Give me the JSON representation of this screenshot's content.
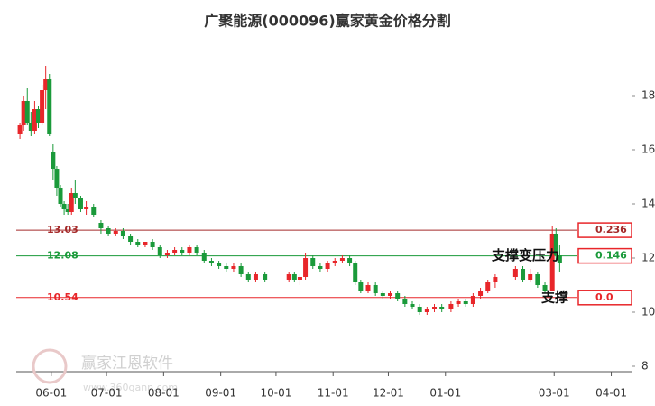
{
  "chart_data": {
    "type": "candlestick",
    "title": "广聚能源(000096)赢家黄金价格分割",
    "x": [
      "05-15",
      "05-17",
      "05-19",
      "05-21",
      "05-23",
      "05-25",
      "05-27",
      "05-29",
      "05-31",
      "06-02",
      "06-04",
      "06-06",
      "06-08",
      "06-10",
      "06-12",
      "06-14",
      "06-17",
      "06-20",
      "06-24",
      "06-28",
      "07-02",
      "07-06",
      "07-10",
      "07-14",
      "07-18",
      "07-22",
      "07-26",
      "07-30",
      "08-03",
      "08-07",
      "08-11",
      "08-15",
      "08-19",
      "08-23",
      "08-27",
      "08-31",
      "09-04",
      "09-08",
      "09-12",
      "09-16",
      "09-20",
      "09-25",
      "10-08",
      "10-11",
      "10-14",
      "10-17",
      "10-21",
      "10-25",
      "10-29",
      "11-02",
      "11-06",
      "11-10",
      "11-13",
      "11-16",
      "11-20",
      "11-24",
      "11-28",
      "12-02",
      "12-06",
      "12-10",
      "12-14",
      "12-18",
      "12-22",
      "12-26",
      "12-30",
      "01-04",
      "01-08",
      "01-12",
      "01-16",
      "01-20",
      "01-24",
      "01-28",
      "02-08",
      "02-12",
      "02-16",
      "02-20",
      "02-24",
      "02-28",
      "03-02",
      "03-04"
    ],
    "open": [
      16.6,
      16.9,
      17.8,
      17.0,
      16.7,
      17.5,
      17.0,
      18.2,
      18.6,
      15.9,
      15.3,
      14.6,
      14.0,
      13.8,
      13.7,
      14.4,
      14.2,
      13.8,
      13.9,
      13.3,
      13.1,
      12.9,
      13.0,
      12.8,
      12.6,
      12.5,
      12.6,
      12.4,
      12.1,
      12.2,
      12.3,
      12.2,
      12.4,
      12.2,
      11.9,
      11.8,
      11.7,
      11.6,
      11.7,
      11.4,
      11.2,
      11.4,
      11.2,
      11.4,
      11.2,
      11.3,
      12.0,
      11.7,
      11.6,
      11.8,
      11.9,
      12.0,
      11.8,
      11.1,
      10.8,
      11.0,
      10.7,
      10.6,
      10.7,
      10.5,
      10.3,
      10.2,
      10.0,
      10.1,
      10.2,
      10.1,
      10.3,
      10.4,
      10.3,
      10.6,
      10.8,
      11.1,
      11.3,
      11.6,
      11.2,
      11.4,
      11.0,
      10.8,
      12.9,
      12.1
    ],
    "high": [
      17.0,
      18.0,
      18.3,
      17.4,
      17.8,
      17.6,
      18.4,
      19.1,
      18.8,
      16.2,
      15.4,
      14.7,
      14.1,
      14.0,
      14.6,
      14.9,
      14.3,
      14.1,
      14.0,
      13.4,
      13.2,
      13.1,
      13.1,
      12.9,
      12.7,
      12.6,
      12.7,
      12.5,
      12.3,
      12.4,
      12.4,
      12.5,
      12.5,
      12.3,
      12.0,
      11.9,
      11.8,
      11.8,
      11.8,
      11.5,
      11.5,
      11.5,
      11.5,
      11.5,
      11.4,
      12.2,
      12.1,
      11.8,
      11.9,
      12.0,
      12.1,
      12.1,
      11.9,
      11.2,
      11.1,
      11.1,
      10.8,
      10.8,
      10.8,
      10.6,
      10.4,
      10.3,
      10.2,
      10.3,
      10.3,
      10.4,
      10.5,
      10.5,
      10.7,
      10.9,
      11.2,
      11.4,
      11.7,
      11.7,
      11.6,
      11.5,
      11.1,
      13.2,
      13.1,
      12.5
    ],
    "low": [
      16.4,
      16.7,
      16.9,
      16.5,
      16.6,
      16.8,
      16.9,
      17.5,
      16.5,
      14.9,
      14.3,
      13.9,
      13.6,
      13.6,
      13.6,
      14.0,
      13.7,
      13.6,
      13.5,
      12.9,
      12.8,
      12.8,
      12.7,
      12.5,
      12.4,
      12.4,
      12.3,
      12.0,
      12.0,
      12.1,
      12.1,
      12.1,
      12.1,
      11.8,
      11.7,
      11.6,
      11.5,
      11.5,
      11.3,
      11.1,
      11.1,
      11.1,
      11.1,
      11.1,
      11.0,
      11.2,
      11.6,
      11.5,
      11.5,
      11.7,
      11.8,
      11.7,
      11.0,
      10.7,
      10.7,
      10.6,
      10.5,
      10.5,
      10.4,
      10.2,
      10.1,
      9.9,
      9.9,
      10.0,
      10.0,
      10.0,
      10.2,
      10.2,
      10.2,
      10.5,
      10.7,
      10.9,
      11.2,
      11.1,
      11.1,
      10.9,
      10.7,
      10.8,
      11.9,
      11.5
    ],
    "close": [
      16.9,
      17.8,
      17.0,
      16.7,
      17.5,
      17.0,
      18.2,
      18.6,
      16.6,
      15.3,
      14.6,
      14.0,
      13.8,
      13.7,
      14.4,
      14.2,
      13.8,
      13.9,
      13.6,
      13.1,
      12.9,
      13.0,
      12.8,
      12.6,
      12.5,
      12.6,
      12.4,
      12.1,
      12.2,
      12.3,
      12.2,
      12.4,
      12.2,
      11.9,
      11.8,
      11.7,
      11.6,
      11.7,
      11.4,
      11.2,
      11.4,
      11.2,
      11.4,
      11.2,
      11.3,
      12.0,
      11.7,
      11.6,
      11.8,
      11.9,
      12.0,
      11.8,
      11.1,
      10.8,
      11.0,
      10.7,
      10.6,
      10.7,
      10.5,
      10.3,
      10.2,
      10.0,
      10.1,
      10.2,
      10.1,
      10.3,
      10.4,
      10.3,
      10.6,
      10.8,
      11.1,
      11.3,
      11.6,
      11.2,
      11.4,
      11.0,
      10.8,
      12.9,
      12.1,
      11.8
    ],
    "up_color": "#e8262a",
    "down_color": "#1a9a3a",
    "xlim": [
      "05-13",
      "04-12"
    ],
    "xticks": [
      "06-01",
      "07-01",
      "08-01",
      "09-01",
      "10-01",
      "11-01",
      "12-01",
      "01-01",
      "03-01",
      "04-01"
    ],
    "ylim": [
      7.8,
      20.2
    ],
    "yticks": [
      8,
      10,
      12,
      14,
      16,
      18
    ],
    "levels": [
      {
        "value": 13.03,
        "ratio": "0.236",
        "color": "#a52a2a"
      },
      {
        "value": 12.08,
        "ratio": "0.146",
        "color": "#1a9a3a"
      },
      {
        "value": 10.54,
        "ratio": "0.0",
        "color": "#e8262a"
      }
    ],
    "annotations": [
      "支撑变压力",
      "支撑"
    ],
    "watermark": [
      "赢家江恩软件",
      "www.360gann.com"
    ]
  }
}
